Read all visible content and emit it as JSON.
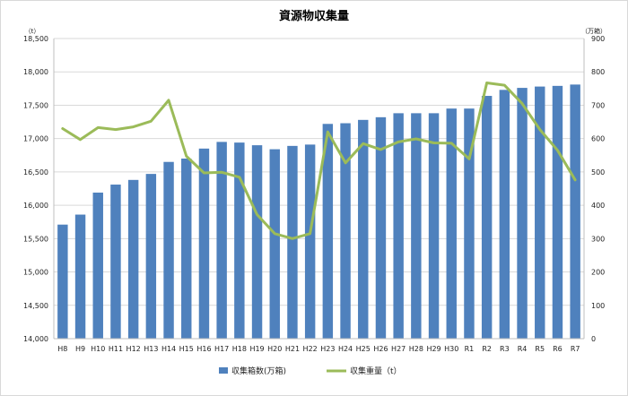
{
  "chart_data": {
    "type": "bar",
    "title": "資源物収集量",
    "left_axis_unit": "（t）",
    "right_axis_unit": "（万箱）",
    "categories": [
      "H8",
      "H9",
      "H10",
      "H11",
      "H12",
      "H13",
      "H14",
      "H15",
      "H16",
      "H17",
      "H18",
      "H19",
      "H20",
      "H21",
      "H22",
      "H23",
      "H24",
      "H25",
      "H26",
      "H27",
      "H28",
      "H29",
      "H30",
      "R1",
      "R2",
      "R3",
      "R4",
      "R5",
      "R6",
      "R7"
    ],
    "series": [
      {
        "name": "収集箱数(万箱)",
        "type": "bar",
        "axis": "left",
        "color": "#4f81bd",
        "values": [
          15710,
          15860,
          16190,
          16310,
          16380,
          16470,
          16650,
          16700,
          16850,
          16950,
          16940,
          16900,
          16840,
          16890,
          16910,
          17220,
          17230,
          17280,
          17320,
          17380,
          17380,
          17380,
          17450,
          17450,
          17640,
          17730,
          17760,
          17780,
          17790,
          17810
        ]
      },
      {
        "name": "収集重量（t）",
        "type": "line",
        "axis": "right",
        "color": "#9bbb59",
        "values": [
          630,
          597,
          633,
          627,
          635,
          652,
          715,
          547,
          497,
          499,
          484,
          372,
          315,
          300,
          315,
          620,
          527,
          585,
          567,
          590,
          599,
          587,
          586,
          539,
          767,
          760,
          705,
          627,
          565,
          476
        ]
      }
    ],
    "left_axis": {
      "min": 14000,
      "max": 18500,
      "step": 500,
      "ticks": [
        "14,000",
        "14,500",
        "15,000",
        "15,500",
        "16,000",
        "16,500",
        "17,000",
        "17,500",
        "18,000",
        "18,500"
      ]
    },
    "right_axis": {
      "min": 0,
      "max": 900,
      "step": 100,
      "ticks": [
        "0",
        "100",
        "200",
        "300",
        "400",
        "500",
        "600",
        "700",
        "800",
        "900"
      ]
    },
    "grid": true,
    "legend_position": "bottom"
  }
}
